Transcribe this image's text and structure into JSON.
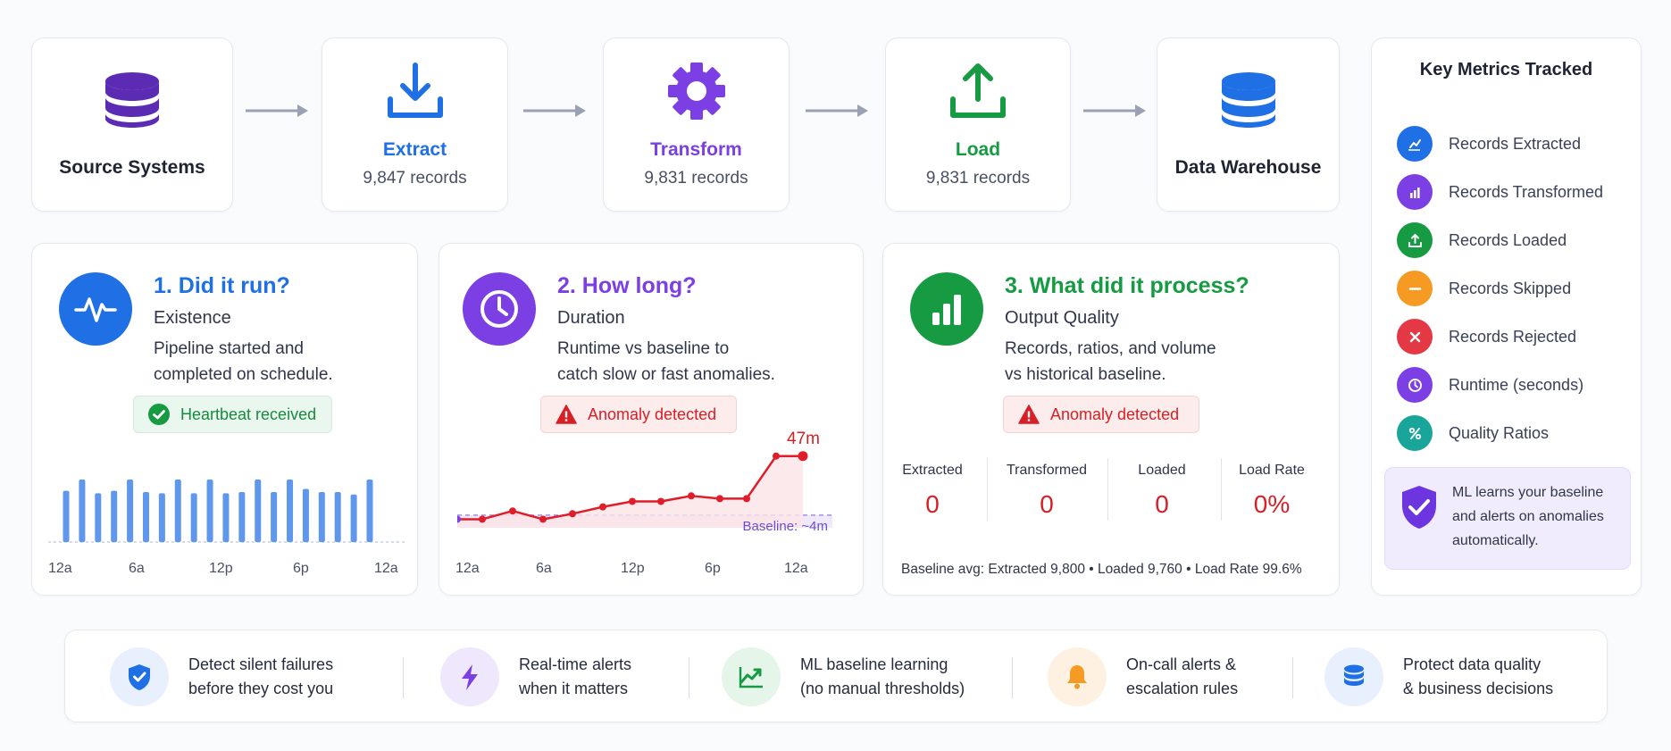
{
  "pipeline": {
    "source": {
      "title": "Source Systems"
    },
    "extract": {
      "title": "Extract",
      "records": "9,847 records",
      "color": "#1f6fe5"
    },
    "transform": {
      "title": "Transform",
      "records": "9,831 records",
      "color": "#7b3fe4"
    },
    "load": {
      "title": "Load",
      "records": "9,831 records",
      "color": "#169a42"
    },
    "warehouse": {
      "title": "Data Warehouse"
    }
  },
  "panels": {
    "run": {
      "title": "1. Did it run?",
      "subtitle": "Existence",
      "desc1": "Pipeline started and",
      "desc2": "completed on schedule.",
      "status": "Heartbeat received",
      "color": "#1f6fe5",
      "xticks": [
        "12a",
        "6a",
        "12p",
        "6p",
        "12a"
      ]
    },
    "duration": {
      "title": "2. How long?",
      "subtitle": "Duration",
      "desc1": "Runtime vs baseline to",
      "desc2": "catch slow or fast anomalies.",
      "status": "Anomaly detected",
      "color": "#7b3fe4",
      "peak_label": "47m",
      "baseline_label": "Baseline: ~4m",
      "xticks": [
        "12a",
        "6a",
        "12p",
        "6p",
        "12a"
      ]
    },
    "process": {
      "title": "3. What did it process?",
      "subtitle": "Output Quality",
      "desc1": "Records, ratios, and volume",
      "desc2": "vs historical baseline.",
      "status": "Anomaly detected",
      "color": "#169a42",
      "metrics": [
        {
          "label": "Extracted",
          "value": "0"
        },
        {
          "label": "Transformed",
          "value": "0"
        },
        {
          "label": "Loaded",
          "value": "0"
        },
        {
          "label": "Load Rate",
          "value": "0%"
        }
      ],
      "baseline_text": "Baseline avg: Extracted 9,800 • Loaded 9,760 • Load Rate 99.6%"
    }
  },
  "key_metrics": {
    "title": "Key Metrics Tracked",
    "items": [
      {
        "label": "Records Extracted",
        "icon": "trend-up-icon",
        "color": "#1f6fe5"
      },
      {
        "label": "Records Transformed",
        "icon": "bar-chart-icon",
        "color": "#7b3fe4"
      },
      {
        "label": "Records Loaded",
        "icon": "upload-icon",
        "color": "#169a42"
      },
      {
        "label": "Records Skipped",
        "icon": "minus-icon",
        "color": "#f59a23"
      },
      {
        "label": "Records Rejected",
        "icon": "x-icon",
        "color": "#e53845"
      },
      {
        "label": "Runtime (seconds)",
        "icon": "clock-icon",
        "color": "#7b3fe4"
      },
      {
        "label": "Quality Ratios",
        "icon": "percent-icon",
        "color": "#1aa59a"
      }
    ],
    "ml_note": "ML learns your baseline and alerts on anomalies automatically."
  },
  "features": [
    {
      "text": "Detect silent failures\nbefore they cost you",
      "icon": "shield-icon",
      "color": "#1f6fe5"
    },
    {
      "text": "Real-time alerts\nwhen it matters",
      "icon": "bolt-icon",
      "color": "#7b3fe4"
    },
    {
      "text": "ML baseline learning\n(no manual thresholds)",
      "icon": "trend-icon",
      "color": "#169a42"
    },
    {
      "text": "On-call alerts &\nescalation rules",
      "icon": "bell-icon",
      "color": "#f59a23"
    },
    {
      "text": "Protect data quality\n& business decisions",
      "icon": "database-icon",
      "color": "#1f6fe5"
    }
  ],
  "chart_data": [
    {
      "type": "bar",
      "title": "1. Did it run?",
      "x_ticks": [
        "12a",
        "6a",
        "12p",
        "6p",
        "12a"
      ],
      "values": [
        0.82,
        1.0,
        0.78,
        0.82,
        1.0,
        0.8,
        0.78,
        1.0,
        0.78,
        1.0,
        0.78,
        0.8,
        1.0,
        0.8,
        1.0,
        0.85,
        0.8,
        0.8,
        0.76,
        1.0
      ],
      "ylim": [
        0,
        1
      ]
    },
    {
      "type": "line",
      "title": "2. How long?",
      "x_ticks": [
        "12a",
        "6a",
        "12p",
        "6p",
        "12a"
      ],
      "series": [
        {
          "values": [
            1,
            1,
            7,
            1,
            5,
            10,
            14,
            14,
            18,
            16,
            16,
            47,
            47
          ]
        }
      ],
      "baseline": 4,
      "peak_label": "47m",
      "ylim": [
        0,
        52
      ]
    }
  ]
}
